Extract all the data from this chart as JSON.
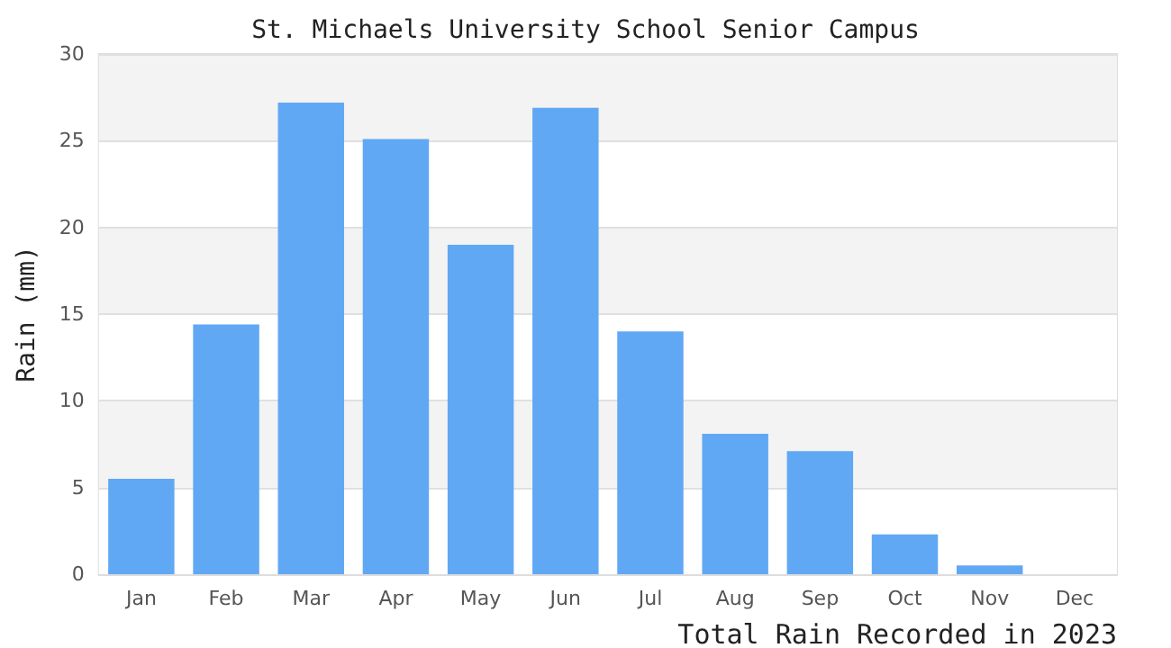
{
  "chart_data": {
    "type": "bar",
    "title": "St. Michaels University School Senior Campus",
    "ylabel": "Rain (mm)",
    "annotations": [
      "Total Rain Recorded in 2023"
    ],
    "categories": [
      "Jan",
      "Feb",
      "Mar",
      "Apr",
      "May",
      "Jun",
      "Jul",
      "Aug",
      "Sep",
      "Oct",
      "Nov",
      "Dec"
    ],
    "values": [
      5.5,
      14.4,
      27.2,
      25.1,
      19.0,
      26.9,
      14.0,
      8.1,
      7.1,
      2.3,
      0.5,
      0
    ],
    "color": "#60a8f4",
    "ylim": [
      0,
      30
    ],
    "yticks": [
      0,
      5,
      10,
      15,
      20,
      25,
      30
    ],
    "grid": "y"
  }
}
